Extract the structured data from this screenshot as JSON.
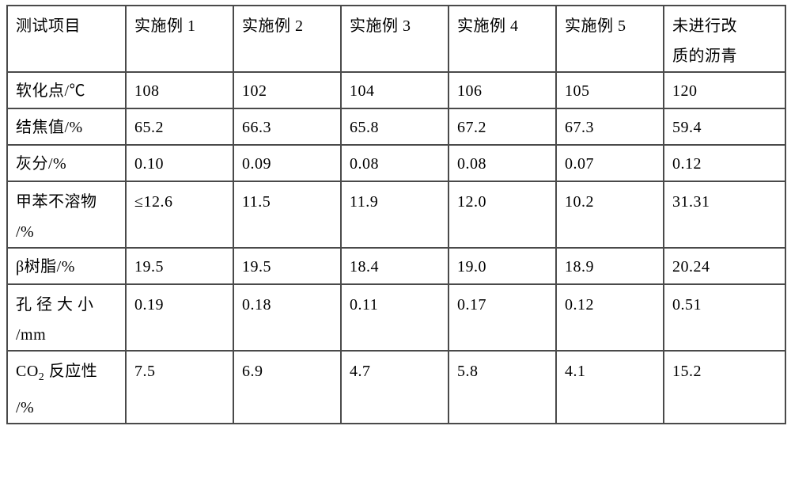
{
  "table": {
    "columns": [
      "测试项目",
      "实施例 1",
      "实施例 2",
      "实施例 3",
      "实施例 4",
      "实施例 5",
      "未进行改质的沥青"
    ],
    "rows": [
      {
        "label": "软化点/℃",
        "v": [
          "108",
          "102",
          "104",
          "106",
          "105",
          "120"
        ]
      },
      {
        "label": "结焦值/%",
        "v": [
          "65.2",
          "66.3",
          "65.8",
          "67.2",
          "67.3",
          "59.4"
        ]
      },
      {
        "label": "灰分/%",
        "v": [
          "0.10",
          "0.09",
          "0.08",
          "0.08",
          "0.07",
          "0.12"
        ]
      },
      {
        "label": "甲苯不溶物/%",
        "v": [
          "≤12.6",
          "11.5",
          "11.9",
          "12.0",
          "10.2",
          "31.31"
        ]
      },
      {
        "label": "β树脂/%",
        "v": [
          "19.5",
          "19.5",
          "18.4",
          "19.0",
          "18.9",
          "20.24"
        ]
      },
      {
        "label": "孔径大小/mm",
        "v": [
          "0.19",
          "0.18",
          "0.11",
          "0.17",
          "0.12",
          "0.51"
        ]
      },
      {
        "label": "CO2 反应性/%",
        "v": [
          "7.5",
          "6.9",
          "4.7",
          "5.8",
          "4.1",
          "15.2"
        ]
      }
    ],
    "border_color": "#4a4a4a",
    "text_color": "#000000",
    "background_color": "#ffffff",
    "font_size_pt": 15
  },
  "labels": {
    "r4_line1": "甲苯不溶物",
    "r4_line2": "/%",
    "r6_line1": "孔径大小",
    "r6_line2": "/mm",
    "r7_pre": "CO",
    "r7_sub": "2",
    "r7_post": " 反应性",
    "r7_line2": "/%",
    "h6_line1": "未进行改",
    "h6_line2": "质的沥青"
  }
}
